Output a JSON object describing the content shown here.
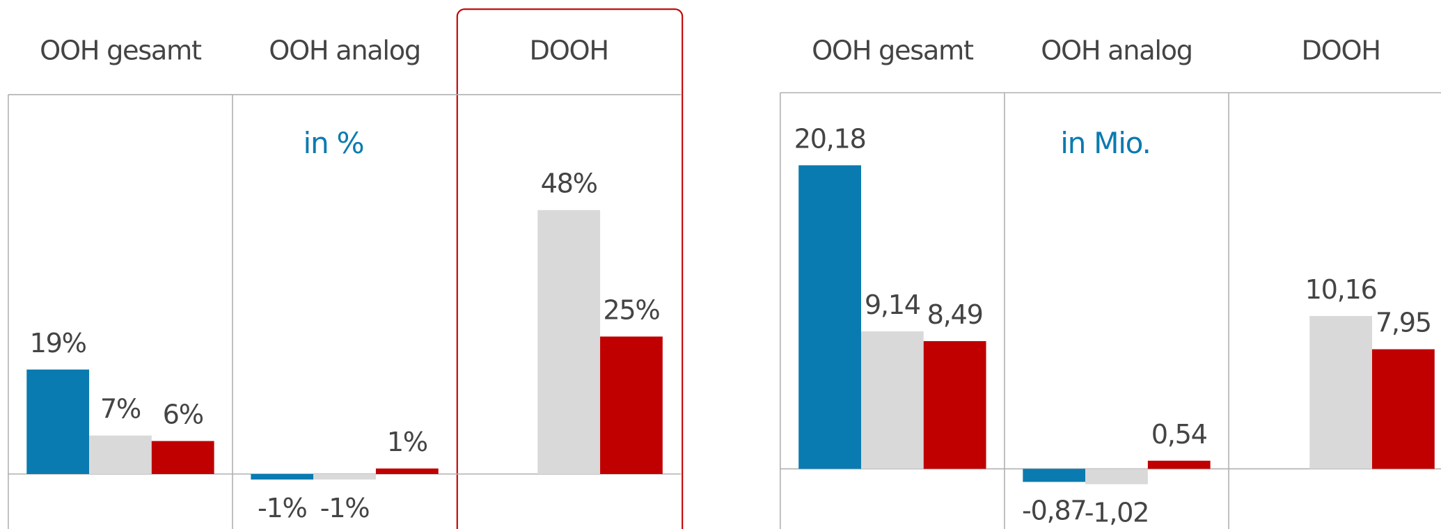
{
  "chart_data": [
    {
      "type": "bar",
      "annotation": "in %",
      "categories": [
        "OOH gesamt",
        "OOH analog",
        "DOOH"
      ],
      "series": [
        {
          "color": "#0a7bb0",
          "values": [
            19,
            -1,
            null
          ],
          "value_labels": [
            "19%",
            "-1%",
            null
          ]
        },
        {
          "color": "#d9d9d9",
          "values": [
            7,
            -1,
            48
          ],
          "value_labels": [
            "7%",
            "-1%",
            "48%"
          ]
        },
        {
          "color": "#c00000",
          "values": [
            6,
            1,
            25
          ],
          "value_labels": [
            "6%",
            "1%",
            "25%"
          ]
        }
      ],
      "ylim": [
        -10,
        69
      ]
    },
    {
      "type": "bar",
      "annotation": "in Mio.",
      "categories": [
        "OOH gesamt",
        "OOH analog",
        "DOOH"
      ],
      "series": [
        {
          "color": "#0a7bb0",
          "values": [
            20.18,
            -0.87,
            null
          ],
          "value_labels": [
            "20,18",
            "-0,87",
            null
          ]
        },
        {
          "color": "#d9d9d9",
          "values": [
            9.14,
            -1.02,
            10.16
          ],
          "value_labels": [
            "9,14",
            "-1,02",
            "10,16"
          ]
        },
        {
          "color": "#c00000",
          "values": [
            8.49,
            0.54,
            7.95
          ],
          "value_labels": [
            "8,49",
            "0,54",
            "7,95"
          ]
        }
      ],
      "ylim": [
        -4,
        25
      ]
    }
  ]
}
